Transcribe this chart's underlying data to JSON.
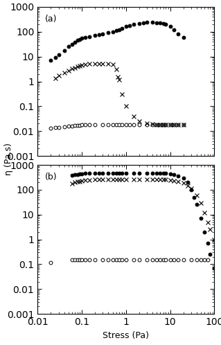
{
  "panel_a": {
    "label": "(a)",
    "circle_open": {
      "x": [
        0.02,
        0.025,
        0.03,
        0.04,
        0.05,
        0.06,
        0.07,
        0.08,
        0.09,
        0.1,
        0.12,
        0.15,
        0.2,
        0.3,
        0.4,
        0.5,
        0.6,
        0.7,
        0.8,
        1.0,
        1.2,
        1.5,
        2.0,
        3.0,
        4.0,
        5.0,
        6.0,
        7.0,
        8.0,
        10.0,
        12.0,
        15.0,
        20.0
      ],
      "y": [
        0.013,
        0.014,
        0.014,
        0.015,
        0.016,
        0.016,
        0.017,
        0.017,
        0.017,
        0.018,
        0.018,
        0.018,
        0.018,
        0.018,
        0.018,
        0.018,
        0.018,
        0.018,
        0.018,
        0.018,
        0.018,
        0.018,
        0.018,
        0.018,
        0.018,
        0.018,
        0.018,
        0.018,
        0.018,
        0.018,
        0.018,
        0.018,
        0.018
      ]
    },
    "cross": {
      "x": [
        0.025,
        0.03,
        0.04,
        0.05,
        0.06,
        0.07,
        0.08,
        0.09,
        0.1,
        0.12,
        0.15,
        0.2,
        0.25,
        0.3,
        0.4,
        0.5,
        0.6,
        0.65,
        0.7,
        0.8,
        1.0,
        1.5,
        2.0,
        3.0,
        4.0,
        5.0,
        6.0,
        7.0,
        8.0,
        10.0,
        12.0,
        15.0,
        20.0
      ],
      "y": [
        1.3,
        1.7,
        2.2,
        2.8,
        3.2,
        3.6,
        4.0,
        4.2,
        4.5,
        4.8,
        5.0,
        5.2,
        5.3,
        5.2,
        5.0,
        4.8,
        3.0,
        1.5,
        1.2,
        0.3,
        0.1,
        0.04,
        0.025,
        0.02,
        0.019,
        0.018,
        0.018,
        0.018,
        0.018,
        0.018,
        0.018,
        0.018,
        0.018
      ]
    },
    "circle_filled": {
      "x": [
        0.02,
        0.025,
        0.03,
        0.04,
        0.05,
        0.06,
        0.07,
        0.08,
        0.09,
        0.1,
        0.12,
        0.15,
        0.2,
        0.25,
        0.3,
        0.4,
        0.5,
        0.6,
        0.7,
        0.8,
        1.0,
        1.2,
        1.5,
        2.0,
        2.5,
        3.0,
        4.0,
        5.0,
        6.0,
        7.0,
        8.0,
        10.0,
        12.0,
        15.0,
        20.0
      ],
      "y": [
        7.0,
        9.0,
        12.0,
        18.0,
        25.0,
        32.0,
        38.0,
        45.0,
        50.0,
        55.0,
        60.0,
        65.0,
        70.0,
        75.0,
        80.0,
        90.0,
        100.0,
        110.0,
        120.0,
        140.0,
        160.0,
        180.0,
        200.0,
        220.0,
        230.0,
        240.0,
        240.0,
        235.0,
        225.0,
        210.0,
        195.0,
        160.0,
        120.0,
        80.0,
        60.0
      ]
    }
  },
  "panel_b": {
    "label": "(b)",
    "circle_open": {
      "x": [
        0.02,
        0.06,
        0.07,
        0.08,
        0.09,
        0.1,
        0.12,
        0.15,
        0.2,
        0.3,
        0.4,
        0.5,
        0.6,
        0.7,
        0.8,
        1.0,
        1.5,
        2.0,
        3.0,
        4.0,
        5.0,
        6.0,
        7.0,
        8.0,
        10.0,
        12.0,
        15.0,
        20.0,
        30.0,
        40.0,
        50.0,
        60.0,
        70.0
      ],
      "y": [
        0.12,
        0.15,
        0.15,
        0.15,
        0.15,
        0.15,
        0.15,
        0.15,
        0.15,
        0.15,
        0.15,
        0.15,
        0.15,
        0.15,
        0.15,
        0.15,
        0.15,
        0.15,
        0.15,
        0.15,
        0.15,
        0.15,
        0.15,
        0.15,
        0.15,
        0.15,
        0.15,
        0.15,
        0.15,
        0.15,
        0.15,
        0.15,
        0.15
      ]
    },
    "cross": {
      "x": [
        0.06,
        0.07,
        0.08,
        0.09,
        0.1,
        0.12,
        0.15,
        0.2,
        0.25,
        0.3,
        0.4,
        0.5,
        0.6,
        0.7,
        0.8,
        1.0,
        1.5,
        2.0,
        3.0,
        4.0,
        5.0,
        6.0,
        7.0,
        8.0,
        10.0,
        12.0,
        15.0,
        20.0,
        25.0,
        30.0,
        40.0,
        50.0,
        60.0,
        70.0,
        80.0,
        100.0
      ],
      "y": [
        180.0,
        200.0,
        210.0,
        220.0,
        230.0,
        240.0,
        250.0,
        255.0,
        258.0,
        260.0,
        260.0,
        262.0,
        262.0,
        262.0,
        262.0,
        262.0,
        262.0,
        262.0,
        262.0,
        262.0,
        260.0,
        258.0,
        255.0,
        252.0,
        245.0,
        235.0,
        215.0,
        185.0,
        150.0,
        110.0,
        60.0,
        30.0,
        12.0,
        5.0,
        2.5,
        1.0
      ]
    },
    "circle_filled": {
      "x": [
        0.06,
        0.07,
        0.08,
        0.09,
        0.1,
        0.12,
        0.15,
        0.2,
        0.25,
        0.3,
        0.4,
        0.5,
        0.6,
        0.7,
        0.8,
        1.0,
        1.5,
        2.0,
        3.0,
        4.0,
        5.0,
        6.0,
        7.0,
        8.0,
        10.0,
        12.0,
        15.0,
        20.0,
        25.0,
        30.0,
        35.0,
        40.0,
        50.0,
        60.0,
        70.0,
        80.0,
        100.0
      ],
      "y": [
        380.0,
        400.0,
        420.0,
        435.0,
        445.0,
        455.0,
        460.0,
        465.0,
        468.0,
        470.0,
        470.0,
        470.0,
        470.0,
        470.0,
        470.0,
        470.0,
        470.0,
        470.0,
        470.0,
        470.0,
        468.0,
        465.0,
        460.0,
        455.0,
        440.0,
        415.0,
        370.0,
        290.0,
        200.0,
        100.0,
        50.0,
        25.0,
        7.0,
        2.0,
        0.7,
        0.25,
        0.07
      ]
    }
  },
  "xlim": [
    0.01,
    100
  ],
  "ylim": [
    0.001,
    1000
  ],
  "xlabel": "Stress (Pa)",
  "ylabel": "η (Pa.s)",
  "marker_size": 3.5,
  "background_color": "#ffffff"
}
